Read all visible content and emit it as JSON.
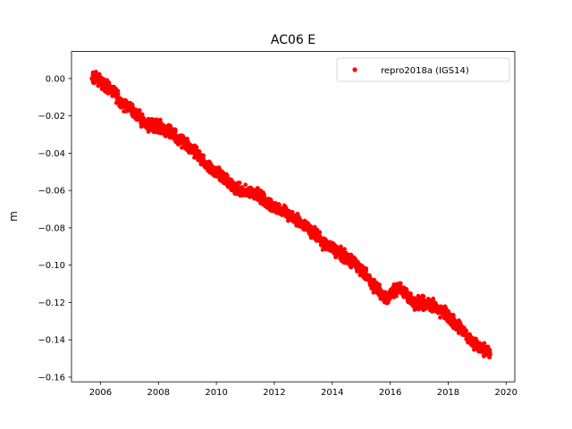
{
  "chart_data": {
    "type": "scatter",
    "title": "AC06 E",
    "xlabel": "",
    "ylabel": "m",
    "xlim": [
      2005.0,
      2020.3
    ],
    "ylim": [
      -0.1625,
      0.0145
    ],
    "xticks": [
      2006,
      2008,
      2010,
      2012,
      2014,
      2016,
      2018,
      2020
    ],
    "xtick_labels": [
      "2006",
      "2008",
      "2010",
      "2012",
      "2014",
      "2016",
      "2018",
      "2020"
    ],
    "yticks": [
      0.0,
      -0.02,
      -0.04,
      -0.06,
      -0.08,
      -0.1,
      -0.12,
      -0.14,
      -0.16
    ],
    "ytick_labels": [
      "0.00",
      "−0.02",
      "−0.04",
      "−0.06",
      "−0.08",
      "−0.10",
      "−0.12",
      "−0.14",
      "−0.16"
    ],
    "legend_position": "top-right",
    "grid": false,
    "series": [
      {
        "name": "repro2018a (IGS14)",
        "color": "#ff0000",
        "marker": "circle",
        "x": [
          2005.7,
          2005.9,
          2006.1,
          2006.3,
          2006.5,
          2006.7,
          2006.9,
          2007.1,
          2007.3,
          2007.5,
          2007.7,
          2007.9,
          2008.1,
          2008.3,
          2008.5,
          2008.7,
          2008.9,
          2009.1,
          2009.3,
          2009.5,
          2009.7,
          2009.9,
          2010.1,
          2010.3,
          2010.5,
          2010.7,
          2010.9,
          2011.1,
          2011.3,
          2011.5,
          2011.7,
          2011.9,
          2012.1,
          2012.3,
          2012.5,
          2012.7,
          2012.9,
          2013.1,
          2013.3,
          2013.5,
          2013.7,
          2013.9,
          2014.1,
          2014.3,
          2014.5,
          2014.7,
          2014.9,
          2015.1,
          2015.3,
          2015.5,
          2015.7,
          2015.9,
          2016.1,
          2016.3,
          2016.5,
          2016.7,
          2016.9,
          2017.1,
          2017.3,
          2017.5,
          2017.7,
          2017.9,
          2018.1,
          2018.3,
          2018.5,
          2018.7,
          2018.9,
          2019.1,
          2019.3,
          2019.45
        ],
        "y": [
          0.0,
          0.0,
          -0.003,
          -0.005,
          -0.008,
          -0.013,
          -0.014,
          -0.017,
          -0.02,
          -0.023,
          -0.025,
          -0.025,
          -0.026,
          -0.028,
          -0.03,
          -0.032,
          -0.035,
          -0.038,
          -0.04,
          -0.044,
          -0.047,
          -0.05,
          -0.051,
          -0.054,
          -0.057,
          -0.059,
          -0.061,
          -0.061,
          -0.061,
          -0.063,
          -0.066,
          -0.068,
          -0.069,
          -0.071,
          -0.073,
          -0.075,
          -0.077,
          -0.079,
          -0.082,
          -0.085,
          -0.088,
          -0.089,
          -0.092,
          -0.094,
          -0.096,
          -0.099,
          -0.101,
          -0.104,
          -0.108,
          -0.112,
          -0.115,
          -0.118,
          -0.114,
          -0.112,
          -0.115,
          -0.119,
          -0.121,
          -0.12,
          -0.121,
          -0.122,
          -0.124,
          -0.126,
          -0.129,
          -0.132,
          -0.135,
          -0.139,
          -0.142,
          -0.144,
          -0.145,
          -0.148
        ]
      }
    ]
  }
}
